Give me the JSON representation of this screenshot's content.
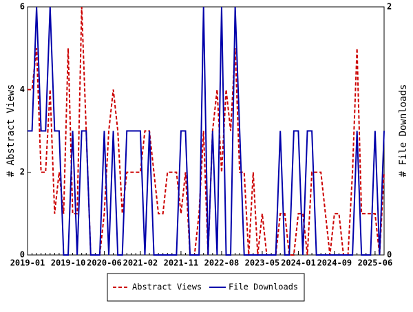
{
  "chart_data": {
    "type": "line",
    "x": [
      "2019-01",
      "2019-02",
      "2019-03",
      "2019-04",
      "2019-05",
      "2019-06",
      "2019-07",
      "2019-08",
      "2019-09",
      "2019-10",
      "2019-11",
      "2019-12",
      "2020-01",
      "2020-02",
      "2020-03",
      "2020-04",
      "2020-05",
      "2020-06",
      "2020-07",
      "2020-08",
      "2020-09",
      "2020-10",
      "2020-11",
      "2020-12",
      "2021-01",
      "2021-02",
      "2021-03",
      "2021-04",
      "2021-05",
      "2021-06",
      "2021-07",
      "2021-08",
      "2021-09",
      "2021-10",
      "2021-11",
      "2021-12",
      "2022-01",
      "2022-02",
      "2022-03",
      "2022-04",
      "2022-05",
      "2022-06",
      "2022-07",
      "2022-08",
      "2022-09",
      "2022-10",
      "2022-11",
      "2022-12",
      "2023-01",
      "2023-02",
      "2023-03",
      "2023-04",
      "2023-05",
      "2023-06",
      "2023-07",
      "2023-08",
      "2023-09",
      "2023-10",
      "2023-11",
      "2023-12",
      "2024-01",
      "2024-02",
      "2024-03",
      "2024-04",
      "2024-05",
      "2024-06",
      "2024-07",
      "2024-08",
      "2024-09",
      "2024-10",
      "2024-11",
      "2024-12",
      "2025-01",
      "2025-02",
      "2025-03",
      "2025-04",
      "2025-05",
      "2025-06",
      "2025-07",
      "2025-08"
    ],
    "xticks": [
      "2019-01",
      "2019-10",
      "2020-06",
      "2021-02",
      "2021-11",
      "2022-08",
      "2023-05",
      "2024-01",
      "2024-09",
      "2025-06"
    ],
    "ylabel": "# Abstract Views",
    "y2label": "# File Downloads",
    "ylim": [
      0,
      6
    ],
    "yticks": [
      0,
      2,
      4,
      6
    ],
    "y2lim": [
      0,
      2
    ],
    "y2ticks": [
      0,
      2
    ],
    "legend": "bottom",
    "series": [
      {
        "name": "Abstract Views",
        "color": "#cc0000",
        "dash": true,
        "values": [
          4,
          4,
          5,
          2,
          2,
          4,
          1,
          2,
          1,
          5,
          1,
          1,
          6,
          3,
          0,
          0,
          0,
          1,
          3,
          4,
          3,
          1,
          2,
          2,
          2,
          2,
          3,
          3,
          2,
          1,
          1,
          2,
          2,
          2,
          1,
          2,
          0,
          0,
          1,
          3,
          0,
          3,
          4,
          2,
          4,
          3,
          5,
          2,
          2,
          0,
          2,
          0,
          1,
          0,
          0,
          0,
          1,
          1,
          0,
          0,
          1,
          1,
          0,
          2,
          2,
          2,
          1,
          0,
          1,
          1,
          0,
          0,
          2,
          5,
          1,
          1,
          1,
          1,
          0,
          2
        ]
      },
      {
        "name": "File Downloads",
        "color": "#0000aa",
        "axis": "y2",
        "values": [
          1,
          1,
          2,
          1,
          1,
          2,
          1,
          1,
          0,
          0,
          1,
          0,
          1,
          1,
          0,
          0,
          0,
          1,
          0,
          1,
          0,
          0,
          1,
          1,
          1,
          1,
          0,
          1,
          0,
          0,
          0,
          0,
          0,
          0,
          1,
          1,
          0,
          0,
          0,
          2,
          0,
          1,
          0,
          2,
          0,
          0,
          2,
          1,
          0,
          0,
          0,
          0,
          0,
          0,
          0,
          0,
          1,
          0,
          0,
          1,
          1,
          0,
          1,
          1,
          0,
          0,
          0,
          0,
          0,
          0,
          0,
          0,
          0,
          1,
          0,
          0,
          0,
          1,
          0,
          1
        ]
      }
    ]
  }
}
